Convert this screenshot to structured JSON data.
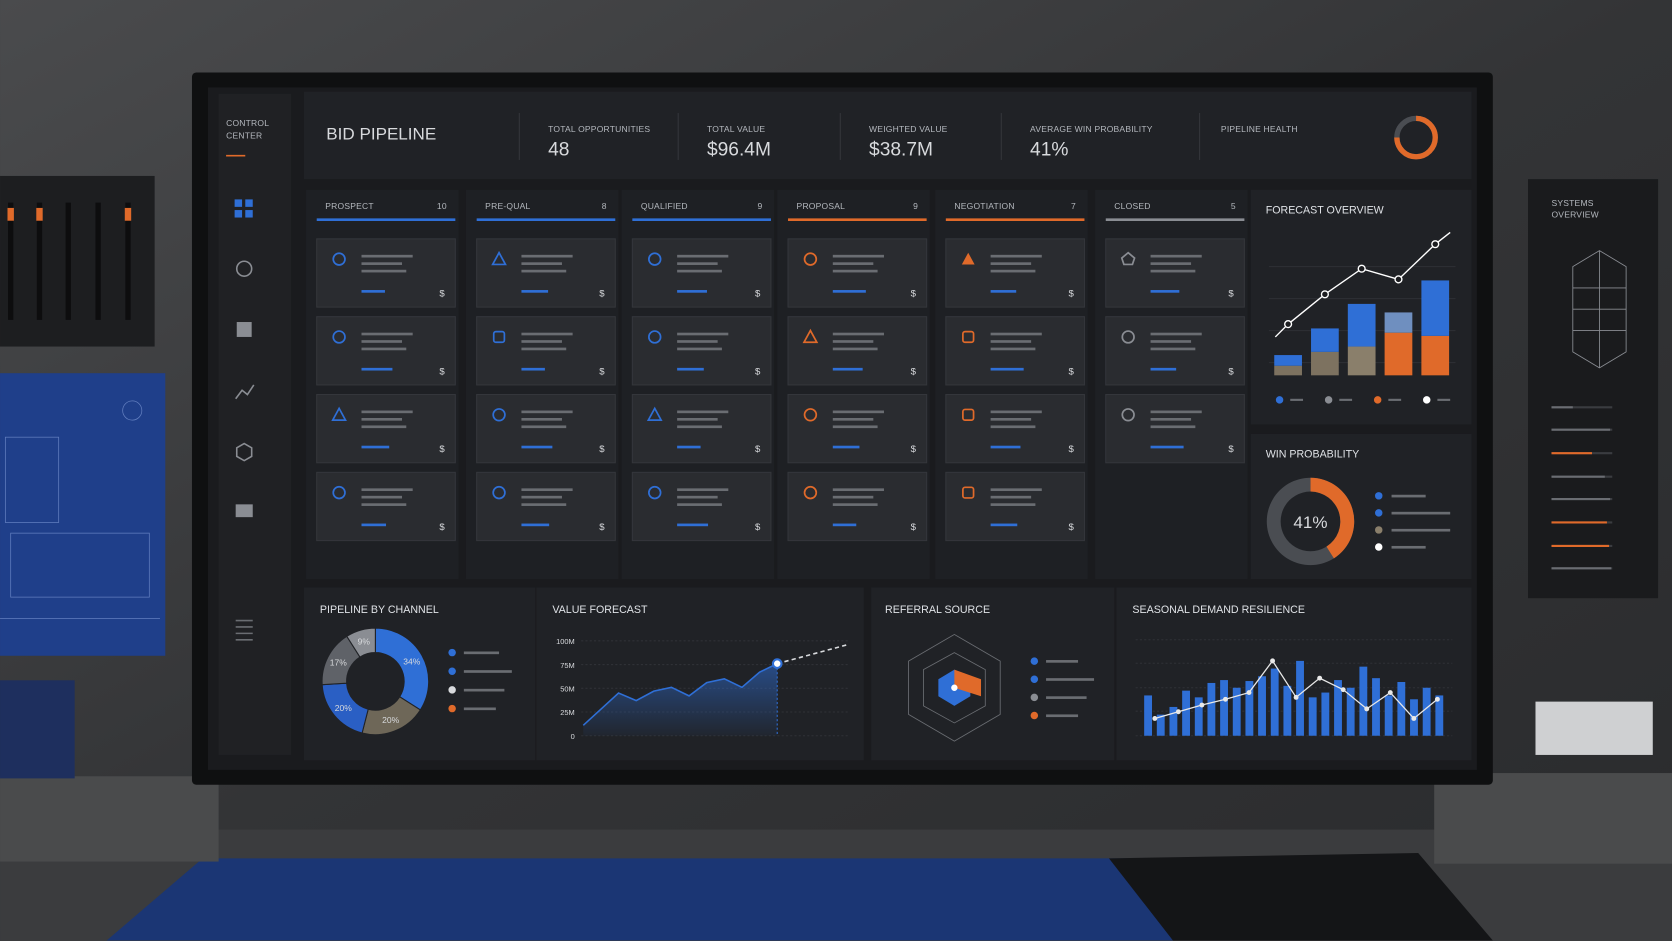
{
  "sidebar": {
    "title": [
      "CONTROL",
      "CENTER"
    ]
  },
  "header": {
    "title": "BID PIPELINE",
    "kpis": [
      {
        "label": "TOTAL OPPORTUNITIES",
        "value": 48
      },
      {
        "label": "TOTAL VALUE",
        "value": "$96.4M"
      },
      {
        "label": "WEIGHTED VALUE",
        "value": "$38.7M"
      },
      {
        "label": "AVERAGE WIN PROBABILITY",
        "value": "41%"
      }
    ],
    "health_label": "PIPELINE HEALTH"
  },
  "columns": [
    {
      "name": "PROSPECT",
      "count": 10,
      "color": "#2f6fd6"
    },
    {
      "name": "PRE-QUAL",
      "count": 8,
      "color": "#2f6fd6"
    },
    {
      "name": "QUALIFIED",
      "count": 9,
      "color": "#2f6fd6"
    },
    {
      "name": "PROPOSAL",
      "count": 9,
      "color": "#e06a2a"
    },
    {
      "name": "NEGOTIATION",
      "count": 7,
      "color": "#e06a2a"
    },
    {
      "name": "CLOSED",
      "count": 5,
      "color": "#8a8d93"
    }
  ],
  "card_symbol": "$",
  "forecast_overview": {
    "type": "stacked-bar-line",
    "title": "FORECAST OVERVIEW",
    "ylim": [
      0,
      130
    ],
    "series": [
      {
        "values": [
          9,
          22,
          27,
          40,
          37
        ],
        "colors": [
          "#7d7260",
          "#7d7260",
          "#8a7f6b",
          "#e06a2a",
          "#e06a2a"
        ]
      },
      {
        "values": [
          10,
          22,
          40,
          19,
          52
        ],
        "colors": [
          "#2f6fd6",
          "#2f6fd6",
          "#2f6fd6",
          "#6f8fbf",
          "#2f6fd6"
        ]
      }
    ],
    "line": {
      "values": [
        48,
        76,
        100,
        90,
        123
      ],
      "color": "#ffffff"
    }
  },
  "win_probability": {
    "title": "WIN PROBABILITY",
    "value": 41,
    "label": "41%",
    "color": "#e06a2a"
  },
  "pipeline_by_channel": {
    "type": "donut",
    "title": "PIPELINE BY CHANNEL",
    "values": [
      34,
      20,
      20,
      17,
      9
    ],
    "value_labels": [
      "34%",
      "20%",
      "20%",
      "17%",
      "9%"
    ],
    "colors": [
      "#2f6fd6",
      "#6e6758",
      "#2a5fc4",
      "#5f6268",
      "#8a8d93"
    ]
  },
  "value_forecast": {
    "type": "line",
    "title": "VALUE FORECAST",
    "x": [
      0,
      1,
      2,
      3,
      4,
      5,
      6,
      7,
      8,
      9,
      10,
      11,
      12,
      13,
      14,
      15
    ],
    "xlim": [
      0,
      15
    ],
    "ylim": [
      0,
      100
    ],
    "yticks": [
      0,
      {
        "value": 25,
        "label": "25M"
      },
      {
        "value": 50,
        "label": "50M"
      },
      {
        "value": 75,
        "label": "75M"
      },
      {
        "value": 100,
        "label": "100M"
      }
    ],
    "series": [
      {
        "color": "#2f6fd6",
        "values": [
          11,
          28,
          45,
          37,
          47,
          51,
          42,
          56,
          60,
          51,
          67,
          76,
          null,
          null,
          null,
          null
        ]
      },
      {
        "color": "#d8dadd",
        "values": [
          null,
          null,
          null,
          null,
          null,
          null,
          null,
          null,
          null,
          null,
          null,
          76,
          81,
          86,
          91,
          96
        ]
      }
    ]
  },
  "referral_source": {
    "title": "REFERRAL SOURCE"
  },
  "seasonal_demand": {
    "type": "bar-line",
    "title": "SEASONAL DEMAND RESILIENCE",
    "ylim": [
      0,
      100
    ],
    "values": [
      42,
      22,
      30,
      47,
      40,
      55,
      58,
      50,
      57,
      62,
      70,
      52,
      78,
      40,
      45,
      58,
      50,
      72,
      60,
      42,
      56,
      38,
      50,
      42
    ],
    "color": "#2f6fd6",
    "line": {
      "values": [
        18,
        25,
        32,
        38,
        45,
        78,
        40,
        60,
        48,
        28,
        45,
        18,
        38
      ],
      "color": "#e8e8e8"
    }
  },
  "systems_overview": {
    "title": [
      "SYSTEMS",
      "OVERVIEW"
    ]
  }
}
